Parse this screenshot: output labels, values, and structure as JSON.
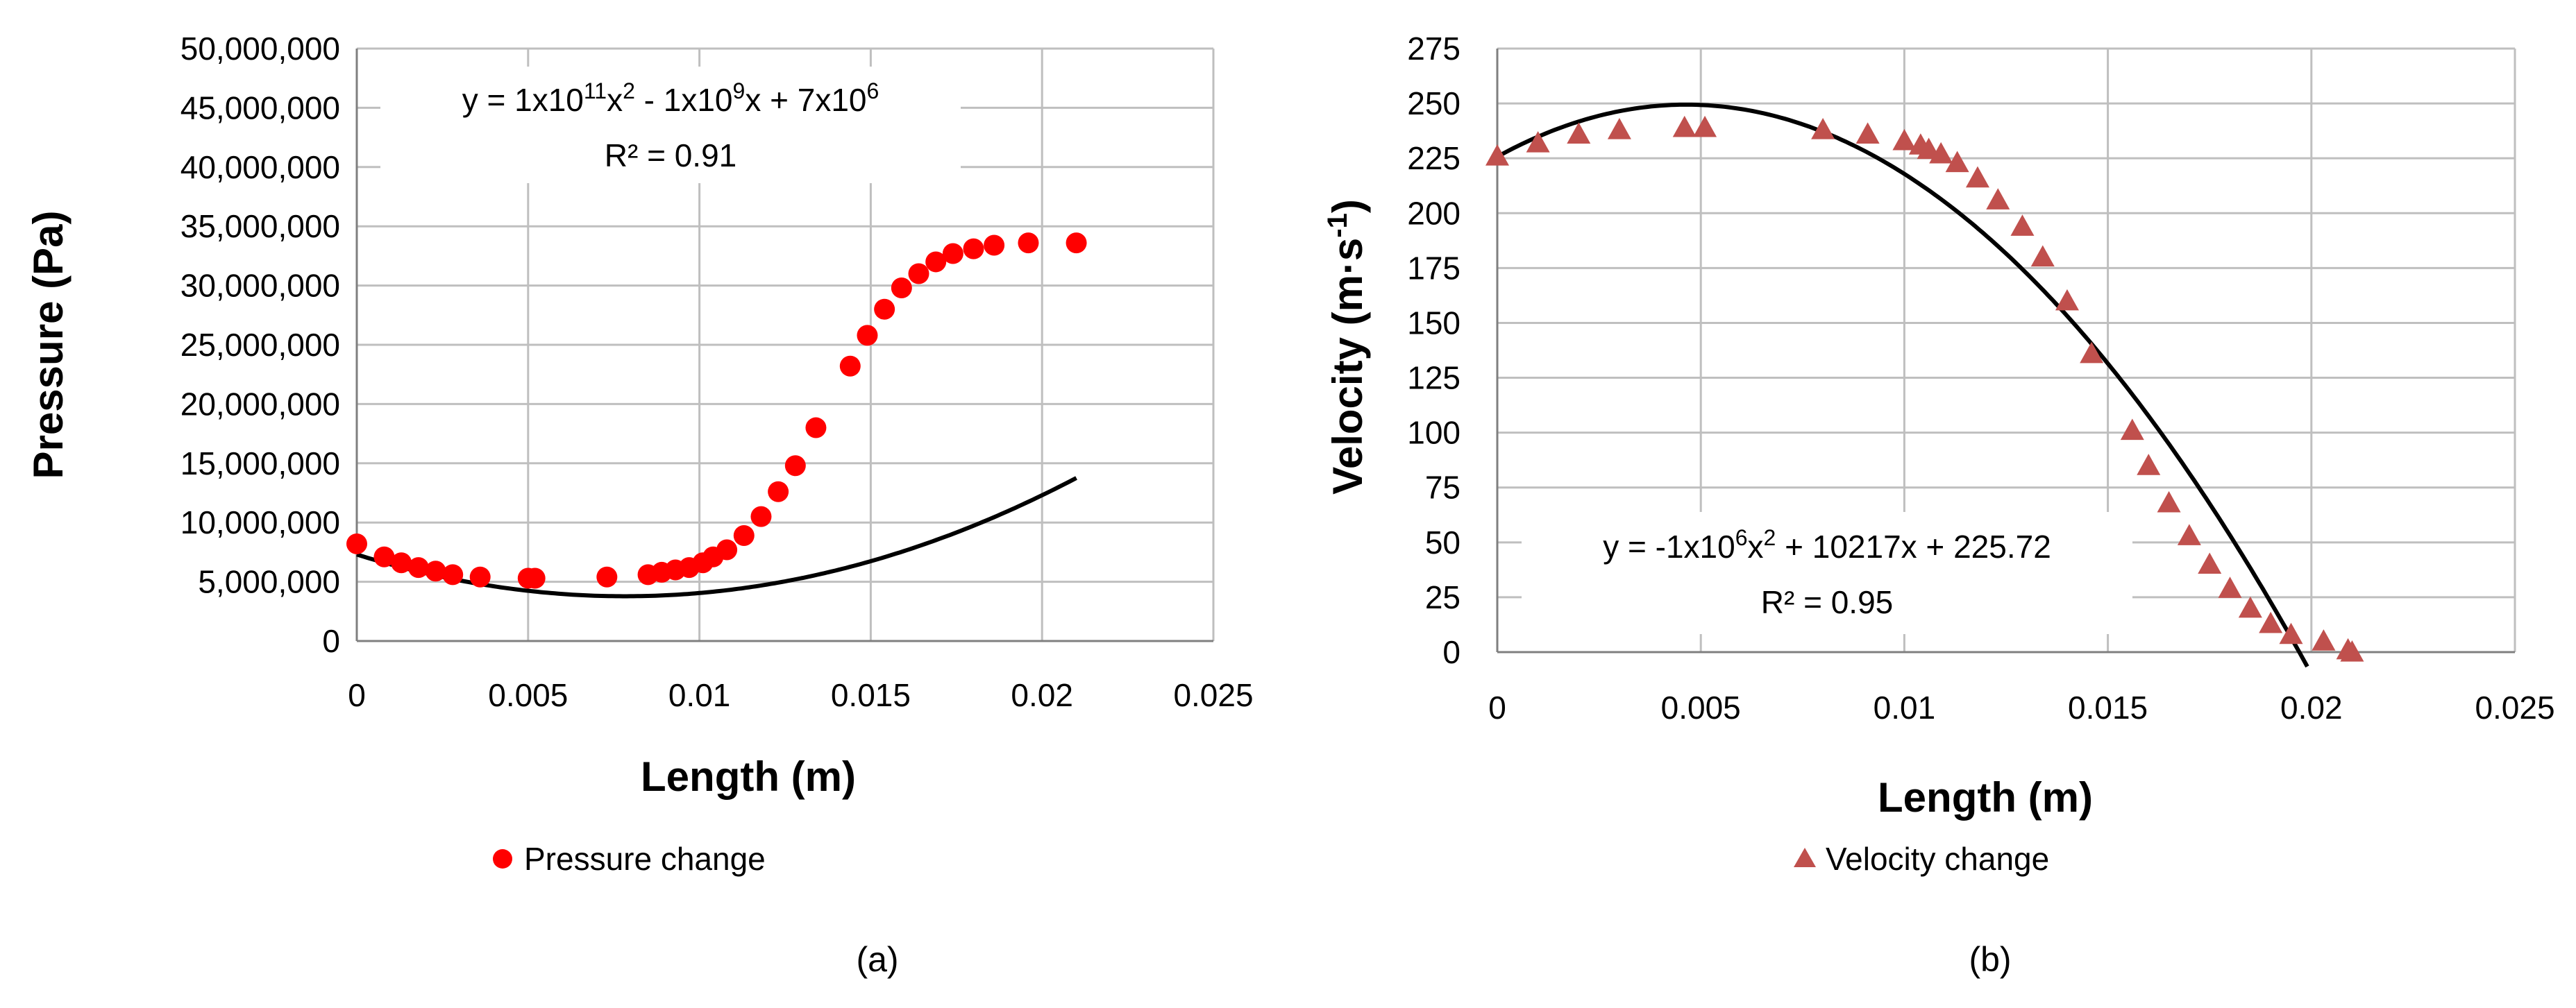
{
  "chart_data": [
    {
      "panel_label": "(a)",
      "type": "scatter",
      "title": "",
      "xlabel": "Length (m)",
      "ylabel": "Pressure (Pa)",
      "xlim": [
        0,
        0.025
      ],
      "ylim": [
        0,
        50000000
      ],
      "x_ticks": [
        "0",
        "0.005",
        "0.01",
        "0.015",
        "0.02",
        "0.025"
      ],
      "y_ticks": [
        "0",
        "5,000,000",
        "10,000,000",
        "15,000,000",
        "20,000,000",
        "25,000,000",
        "30,000,000",
        "35,000,000",
        "40,000,000",
        "45,000,000",
        "50,000,000"
      ],
      "grid": true,
      "legend": "bottom",
      "series": [
        {
          "name": "Pressure change",
          "marker": "circle",
          "color": "#ff0000",
          "x": [
            0,
            0.0008,
            0.0013,
            0.0018,
            0.0023,
            0.0028,
            0.0036,
            0.005,
            0.0052,
            0.0073,
            0.0085,
            0.0089,
            0.0093,
            0.0097,
            0.0101,
            0.0104,
            0.0108,
            0.0113,
            0.0118,
            0.0123,
            0.0128,
            0.0134,
            0.0144,
            0.0149,
            0.0154,
            0.0159,
            0.0164,
            0.0169,
            0.0174,
            0.018,
            0.0186,
            0.0196,
            0.021
          ],
          "values": [
            8200000,
            7100000,
            6600000,
            6200000,
            5900000,
            5600000,
            5400000,
            5300000,
            5300000,
            5400000,
            5600000,
            5800000,
            6000000,
            6200000,
            6600000,
            7100000,
            7700000,
            8900000,
            10500000,
            12600000,
            14800000,
            18000000,
            23200000,
            25800000,
            28000000,
            29800000,
            31000000,
            32000000,
            32700000,
            33100000,
            33400000,
            33600000,
            33600000
          ]
        }
      ],
      "trendline": {
        "kind": "polynomial",
        "coefficients": [
          57500000000.0,
          -900000000.0,
          7300000.0
        ],
        "x_range": [
          0,
          0.021
        ],
        "color": "#000000",
        "equation_label": {
          "prefix": "y = 1x10",
          "exp1": "11",
          "mid1": "x",
          "exp2": "2",
          "mid2": " - 1x10",
          "exp3": "9",
          "mid3": "x + 7x10",
          "exp4": "6"
        },
        "r2_label": "R² = 0.91"
      }
    },
    {
      "panel_label": "(b)",
      "type": "scatter",
      "title": "",
      "xlabel": "Length (m)",
      "ylabel": {
        "main": "Velocity (m·s",
        "sup": "-1",
        "close": ")"
      },
      "xlim": [
        0,
        0.025
      ],
      "ylim": [
        0,
        275
      ],
      "x_ticks": [
        "0",
        "0.005",
        "0.01",
        "0.015",
        "0.02",
        "0.025"
      ],
      "y_ticks": [
        "0",
        "25",
        "50",
        "75",
        "100",
        "125",
        "150",
        "175",
        "200",
        "225",
        "250",
        "275"
      ],
      "grid": true,
      "legend": "bottom",
      "series": [
        {
          "name": "Velocity change",
          "marker": "triangle",
          "color": "#c0504d",
          "x": [
            0,
            0.001,
            0.002,
            0.003,
            0.0046,
            0.0051,
            0.008,
            0.0091,
            0.01,
            0.0104,
            0.0106,
            0.0109,
            0.0113,
            0.0118,
            0.0123,
            0.0129,
            0.0134,
            0.014,
            0.0146,
            0.0156,
            0.016,
            0.0165,
            0.017,
            0.0175,
            0.018,
            0.0185,
            0.019,
            0.0195,
            0.0203,
            0.0209,
            0.021
          ],
          "values": [
            226,
            232,
            236,
            238,
            239,
            239,
            238,
            236,
            233,
            231,
            229,
            227,
            223,
            216,
            206,
            194,
            180,
            160,
            136,
            101,
            85,
            68,
            53,
            40,
            29,
            20,
            13,
            8,
            5,
            1,
            0
          ]
        }
      ],
      "trendline": {
        "kind": "polynomial",
        "coefficients": [
          -1100000.0,
          10217,
          225.72
        ],
        "x_range": [
          0,
          0.0199
        ],
        "color": "#000000",
        "equation_label": {
          "prefix": "y = -1x10",
          "exp1": "6",
          "mid1": "x",
          "exp2": "2",
          "mid2": " + 10217x + 225.72"
        },
        "r2_label": "R² = 0.95"
      }
    }
  ]
}
